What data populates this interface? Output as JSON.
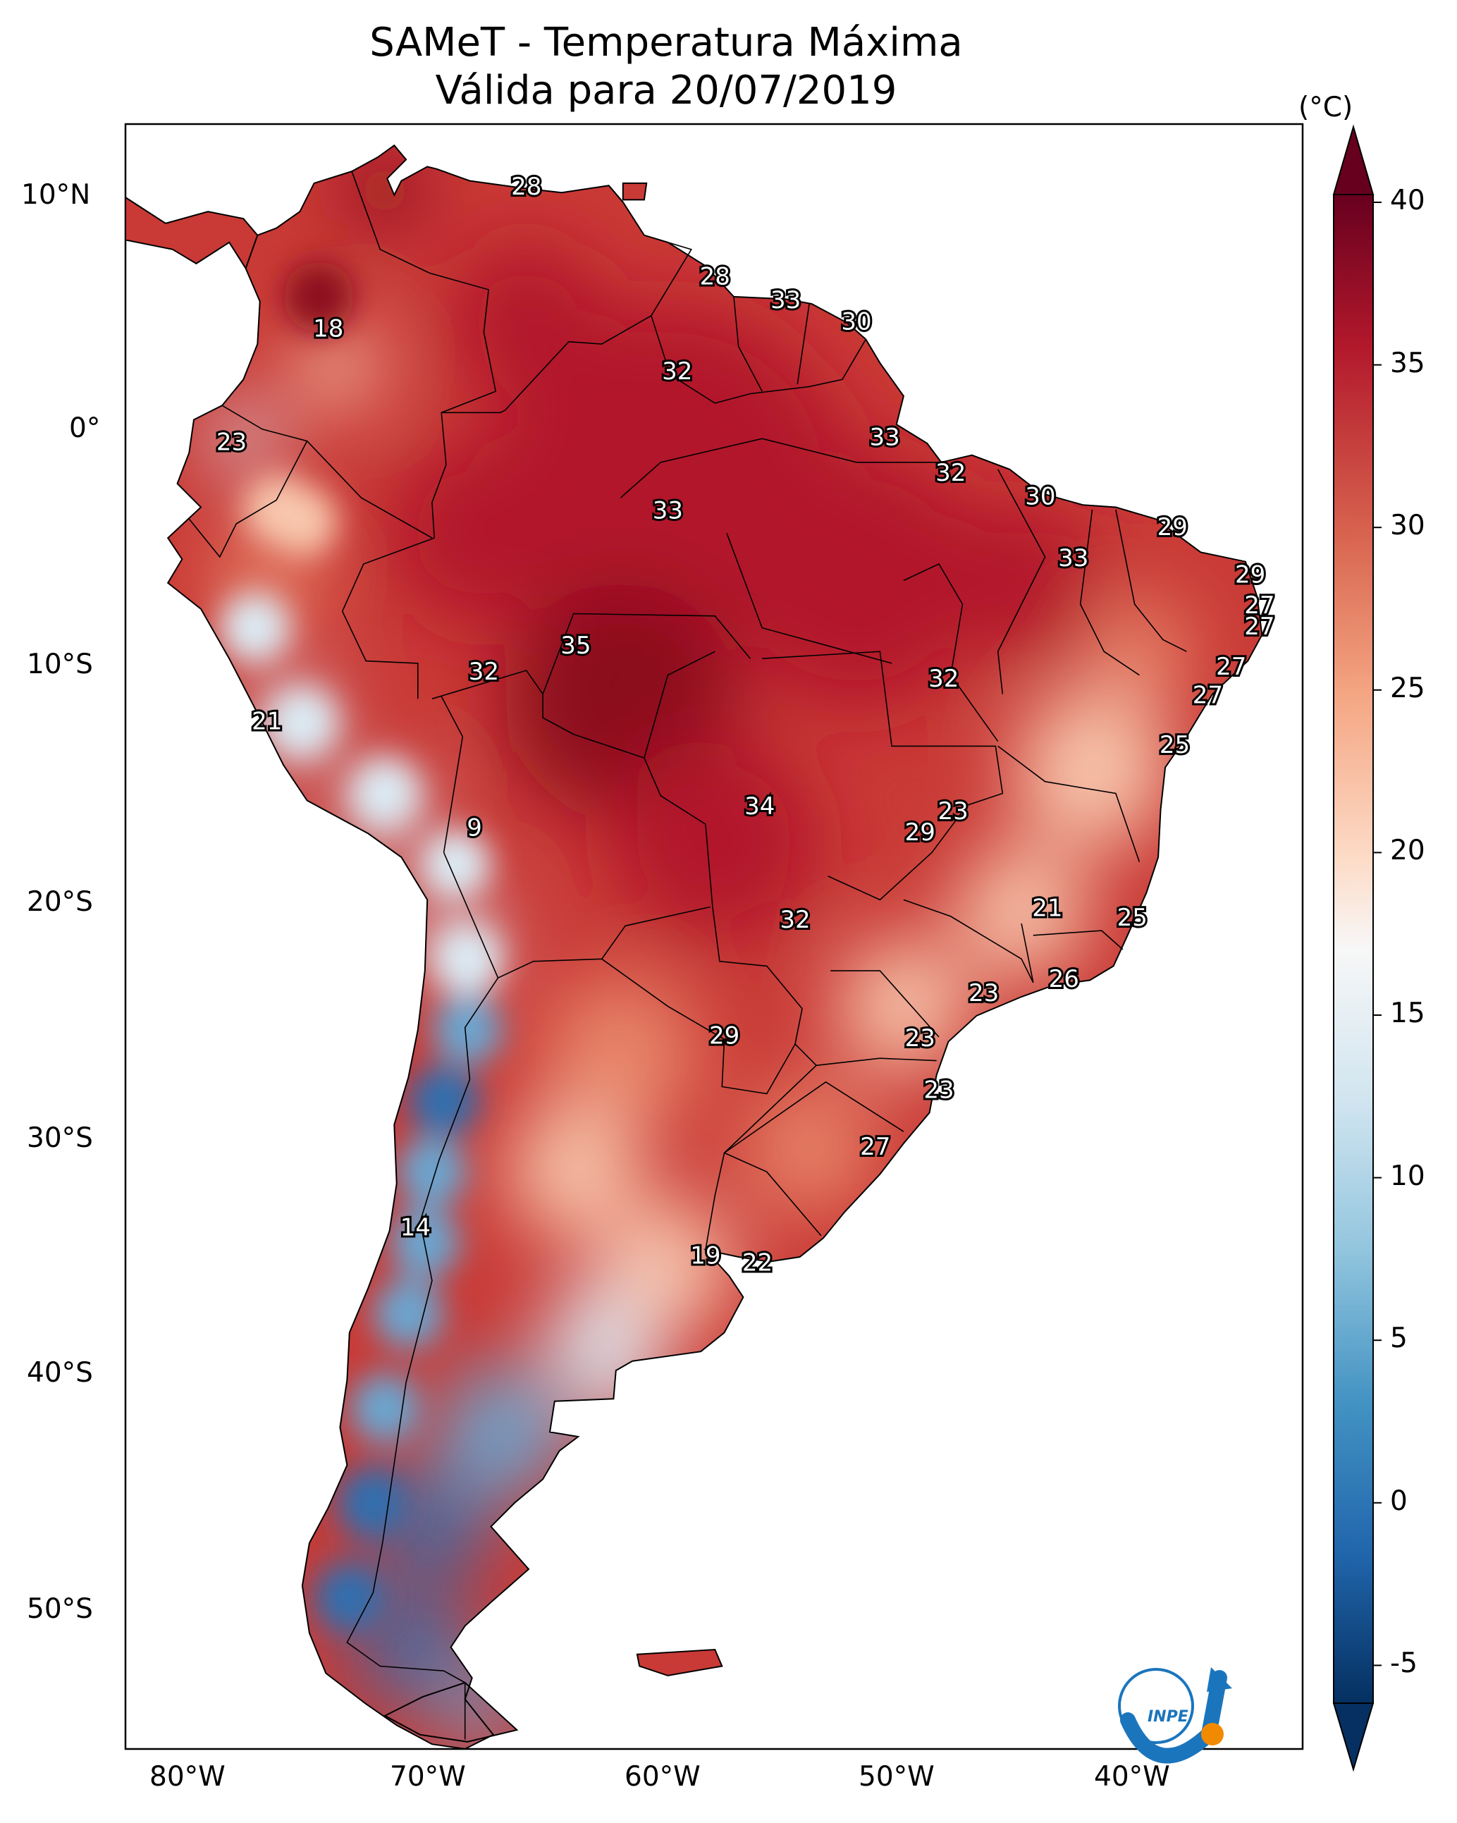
{
  "title": {
    "line1": "SAMeT - Temperatura Máxima",
    "line2": "Válida para 20/07/2019"
  },
  "colorbar": {
    "unit": "(°C)",
    "ticks": [
      "40",
      "35",
      "30",
      "25",
      "20",
      "15",
      "10",
      "5",
      "0",
      "-5"
    ],
    "colors_top_to_bottom": [
      "#67001f",
      "#b2182b",
      "#d6604d",
      "#f4a582",
      "#fddbc7",
      "#f7f7f7",
      "#d1e5f0",
      "#92c5de",
      "#4393c3",
      "#2166ac",
      "#053061"
    ]
  },
  "axes": {
    "lat_labels": [
      "10°N",
      "0°",
      "10°S",
      "20°S",
      "30°S",
      "40°S",
      "50°S"
    ],
    "lon_labels": [
      "80°W",
      "70°W",
      "60°W",
      "50°W",
      "40°W"
    ]
  },
  "map": {
    "colors": {
      "hot": "#b2182b",
      "very_hot": "#8b0a1e",
      "warm": "#e8866a",
      "mild": "#f8c7ad",
      "cool": "#dcebf4",
      "cold": "#6aa6d0",
      "very_cold": "#2f6fb0"
    },
    "station_values": [
      {
        "v": 28,
        "lon": -66.0,
        "lat": 10.6
      },
      {
        "v": 28,
        "lon": -58.0,
        "lat": 6.8
      },
      {
        "v": 33,
        "lon": -55.0,
        "lat": 5.8
      },
      {
        "v": 30,
        "lon": -52.0,
        "lat": 4.9
      },
      {
        "v": 32,
        "lon": -59.6,
        "lat": 2.8
      },
      {
        "v": 18,
        "lon": -74.4,
        "lat": 4.6
      },
      {
        "v": 23,
        "lon": -78.5,
        "lat": -0.2
      },
      {
        "v": 33,
        "lon": -50.8,
        "lat": 0.0
      },
      {
        "v": 32,
        "lon": -48.0,
        "lat": -1.5
      },
      {
        "v": 30,
        "lon": -44.2,
        "lat": -2.5
      },
      {
        "v": 29,
        "lon": -38.6,
        "lat": -3.8
      },
      {
        "v": 33,
        "lon": -42.8,
        "lat": -5.1
      },
      {
        "v": 29,
        "lon": -35.3,
        "lat": -5.8
      },
      {
        "v": 27,
        "lon": -34.9,
        "lat": -7.1
      },
      {
        "v": 27,
        "lon": -34.9,
        "lat": -8.0
      },
      {
        "v": 33,
        "lon": -60.0,
        "lat": -3.1
      },
      {
        "v": 35,
        "lon": -63.9,
        "lat": -8.8
      },
      {
        "v": 32,
        "lon": -67.8,
        "lat": -9.9
      },
      {
        "v": 32,
        "lon": -48.3,
        "lat": -10.2
      },
      {
        "v": 27,
        "lon": -36.1,
        "lat": -9.7
      },
      {
        "v": 27,
        "lon": -37.1,
        "lat": -10.9
      },
      {
        "v": 25,
        "lon": -38.5,
        "lat": -13.0
      },
      {
        "v": 21,
        "lon": -77.0,
        "lat": -12.0
      },
      {
        "v": 9,
        "lon": -68.2,
        "lat": -16.5
      },
      {
        "v": 34,
        "lon": -56.1,
        "lat": -15.6
      },
      {
        "v": 23,
        "lon": -47.9,
        "lat": -15.8
      },
      {
        "v": 29,
        "lon": -49.3,
        "lat": -16.7
      },
      {
        "v": 21,
        "lon": -43.9,
        "lat": -19.9
      },
      {
        "v": 25,
        "lon": -40.3,
        "lat": -20.3
      },
      {
        "v": 32,
        "lon": -54.6,
        "lat": -20.4
      },
      {
        "v": 26,
        "lon": -43.2,
        "lat": -22.9
      },
      {
        "v": 23,
        "lon": -46.6,
        "lat": -23.5
      },
      {
        "v": 29,
        "lon": -57.6,
        "lat": -25.3
      },
      {
        "v": 23,
        "lon": -49.3,
        "lat": -25.4
      },
      {
        "v": 23,
        "lon": -48.5,
        "lat": -27.6
      },
      {
        "v": 27,
        "lon": -51.2,
        "lat": -30.0
      },
      {
        "v": 14,
        "lon": -70.7,
        "lat": -33.4
      },
      {
        "v": 19,
        "lon": -58.4,
        "lat": -34.6
      },
      {
        "v": 22,
        "lon": -56.2,
        "lat": -34.9
      }
    ]
  },
  "logo": {
    "text": "INPE"
  }
}
